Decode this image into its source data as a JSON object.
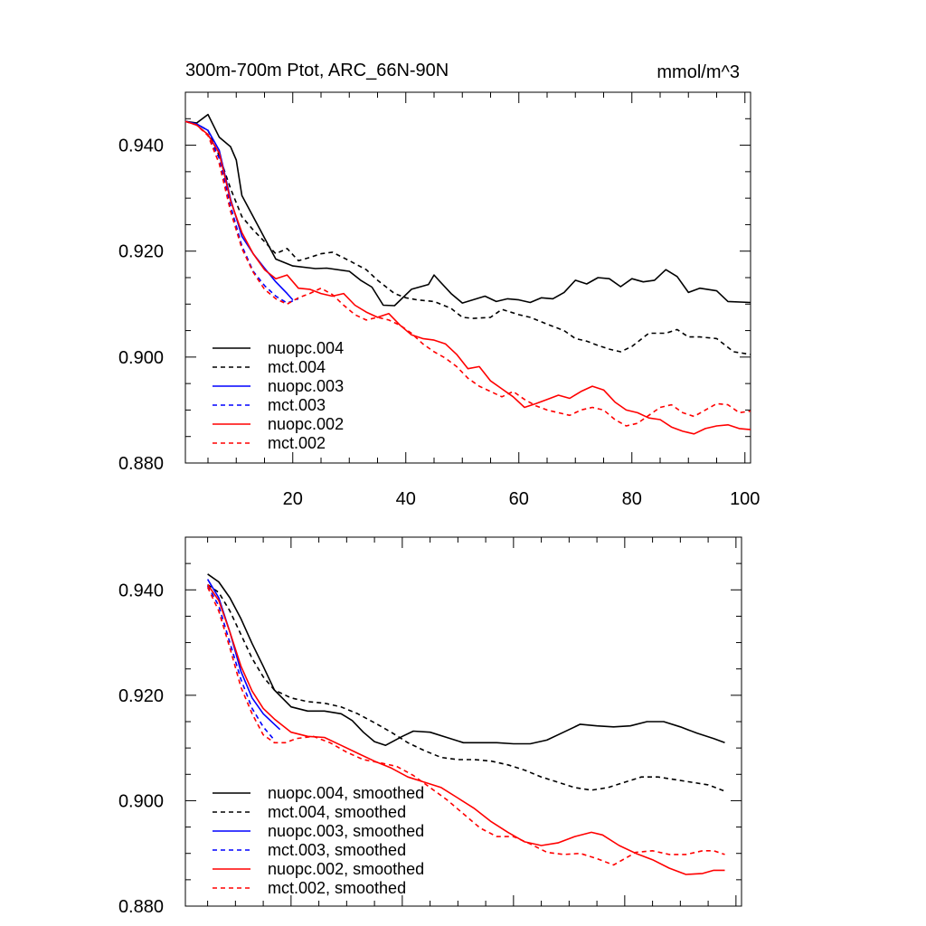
{
  "chart_data": [
    {
      "type": "line",
      "title": "300m-700m Ptot, ARC_66N-90N",
      "units": "mmol/m^3",
      "xlim": [
        1,
        101
      ],
      "ylim": [
        0.88,
        0.95
      ],
      "xticks": [
        20,
        40,
        60,
        80,
        100
      ],
      "xtick_labels": [
        "20",
        "40",
        "60",
        "80",
        "100"
      ],
      "yticks": [
        0.88,
        0.9,
        0.92,
        0.94
      ],
      "ytick_labels": [
        "0.880",
        "0.900",
        "0.920",
        "0.940"
      ],
      "legend_position": "bottom-left",
      "series": [
        {
          "name": "nuopc.004",
          "color": "#000000",
          "dash": "solid",
          "x": [
            1,
            3,
            5,
            7,
            9,
            10,
            11,
            13,
            15,
            17,
            20,
            24,
            26,
            30,
            32,
            34,
            36,
            38,
            41,
            44,
            45,
            46,
            48,
            50,
            54,
            56,
            58,
            60,
            62,
            64,
            66,
            68,
            70,
            72,
            74,
            76,
            78,
            80,
            82,
            84,
            86,
            88,
            90,
            92,
            95,
            97,
            101
          ],
          "y": [
            0.9445,
            0.9442,
            0.9458,
            0.9415,
            0.9397,
            0.9372,
            0.9305,
            0.9265,
            0.9225,
            0.9185,
            0.9172,
            0.9167,
            0.9168,
            0.9162,
            0.9145,
            0.9132,
            0.9098,
            0.9097,
            0.9128,
            0.9137,
            0.9155,
            0.9143,
            0.912,
            0.9102,
            0.9115,
            0.9105,
            0.911,
            0.9108,
            0.9103,
            0.9112,
            0.911,
            0.9122,
            0.9145,
            0.9138,
            0.915,
            0.9148,
            0.9133,
            0.9148,
            0.9142,
            0.9145,
            0.9165,
            0.9152,
            0.9122,
            0.913,
            0.9125,
            0.9105,
            0.9103
          ]
        },
        {
          "name": "mct.004",
          "color": "#000000",
          "dash": "dashed",
          "x": [
            1,
            3,
            5,
            7,
            9,
            11,
            13,
            15,
            17,
            19,
            21,
            23,
            25,
            27,
            30,
            33,
            35,
            38,
            40,
            42,
            45,
            48,
            50,
            52,
            55,
            57,
            60,
            62,
            65,
            68,
            70,
            72,
            74,
            76,
            78,
            80,
            83,
            86,
            88,
            90,
            92,
            95,
            98,
            101
          ],
          "y": [
            0.9445,
            0.944,
            0.9428,
            0.938,
            0.9318,
            0.9265,
            0.924,
            0.9218,
            0.9195,
            0.9205,
            0.9182,
            0.9188,
            0.9195,
            0.9198,
            0.9182,
            0.9165,
            0.9145,
            0.912,
            0.9112,
            0.9108,
            0.9105,
            0.9092,
            0.9075,
            0.9073,
            0.9075,
            0.909,
            0.908,
            0.9075,
            0.9062,
            0.905,
            0.9035,
            0.903,
            0.9022,
            0.9015,
            0.901,
            0.902,
            0.9045,
            0.9045,
            0.9052,
            0.9038,
            0.9038,
            0.9035,
            0.901,
            0.9005
          ]
        },
        {
          "name": "nuopc.003",
          "color": "#0000ff",
          "dash": "solid",
          "x": [
            1,
            3,
            5,
            7,
            9,
            11,
            13,
            15,
            17,
            19,
            20
          ],
          "y": [
            0.9445,
            0.944,
            0.9428,
            0.939,
            0.9298,
            0.9228,
            0.9195,
            0.9168,
            0.9142,
            0.912,
            0.9108
          ]
        },
        {
          "name": "mct.003",
          "color": "#0000ff",
          "dash": "dashed",
          "x": [
            1,
            3,
            5,
            7,
            9,
            11,
            13,
            15,
            17,
            19,
            21
          ],
          "y": [
            0.9445,
            0.9438,
            0.942,
            0.9375,
            0.9285,
            0.921,
            0.9162,
            0.9135,
            0.9115,
            0.9102,
            0.911
          ]
        },
        {
          "name": "nuopc.002",
          "color": "#ff0000",
          "dash": "solid",
          "x": [
            1,
            3,
            5,
            7,
            9,
            11,
            13,
            15,
            17,
            19,
            21,
            23,
            25,
            27,
            29,
            31,
            33,
            35,
            37,
            39,
            41,
            43,
            45,
            47,
            49,
            51,
            53,
            55,
            57,
            59,
            61,
            63,
            65,
            67,
            69,
            71,
            73,
            75,
            77,
            79,
            81,
            83,
            85,
            87,
            89,
            91,
            93,
            95,
            97,
            99,
            101
          ],
          "y": [
            0.9445,
            0.9438,
            0.942,
            0.9385,
            0.9295,
            0.9235,
            0.9195,
            0.9165,
            0.9148,
            0.9155,
            0.913,
            0.9128,
            0.912,
            0.9115,
            0.912,
            0.9098,
            0.9085,
            0.9075,
            0.9082,
            0.906,
            0.9042,
            0.9035,
            0.9032,
            0.9025,
            0.9005,
            0.8978,
            0.8982,
            0.8955,
            0.894,
            0.8925,
            0.8905,
            0.8912,
            0.892,
            0.8928,
            0.8922,
            0.8935,
            0.8945,
            0.8938,
            0.8915,
            0.89,
            0.8895,
            0.8885,
            0.8882,
            0.8868,
            0.886,
            0.8855,
            0.8865,
            0.887,
            0.8872,
            0.8865,
            0.8863
          ]
        },
        {
          "name": "mct.002",
          "color": "#ff0000",
          "dash": "dashed",
          "x": [
            1,
            3,
            5,
            7,
            9,
            11,
            13,
            15,
            17,
            19,
            21,
            23,
            25,
            27,
            29,
            31,
            33,
            35,
            37,
            39,
            41,
            43,
            45,
            47,
            49,
            51,
            53,
            55,
            57,
            59,
            61,
            63,
            65,
            67,
            69,
            71,
            73,
            75,
            77,
            79,
            81,
            83,
            85,
            87,
            89,
            91,
            93,
            95,
            97,
            99,
            101
          ],
          "y": [
            0.9445,
            0.9438,
            0.9418,
            0.9365,
            0.9275,
            0.9205,
            0.916,
            0.9128,
            0.911,
            0.91,
            0.9112,
            0.912,
            0.913,
            0.9118,
            0.9098,
            0.908,
            0.907,
            0.9075,
            0.907,
            0.906,
            0.9045,
            0.9025,
            0.901,
            0.8998,
            0.8982,
            0.896,
            0.8945,
            0.8935,
            0.8925,
            0.8935,
            0.892,
            0.8908,
            0.89,
            0.8895,
            0.889,
            0.89,
            0.8905,
            0.89,
            0.8882,
            0.887,
            0.8875,
            0.889,
            0.8905,
            0.891,
            0.8895,
            0.8888,
            0.89,
            0.8912,
            0.891,
            0.8895,
            0.8898
          ]
        }
      ]
    },
    {
      "type": "line",
      "xlim": [
        1,
        101
      ],
      "ylim": [
        0.88,
        0.95
      ],
      "xticks": [
        20,
        40,
        60,
        80,
        100
      ],
      "yticks": [
        0.88,
        0.9,
        0.92,
        0.94
      ],
      "ytick_labels": [
        "0.880",
        "0.900",
        "0.920",
        "0.940"
      ],
      "legend_position": "bottom-left",
      "series": [
        {
          "name": "nuopc.004, smoothed",
          "color": "#000000",
          "dash": "solid",
          "x": [
            5,
            7,
            9,
            11,
            13,
            15,
            17,
            20,
            23,
            26,
            29,
            31,
            33,
            35,
            37,
            40,
            42,
            45,
            48,
            51,
            54,
            57,
            60,
            63,
            66,
            69,
            72,
            75,
            78,
            81,
            84,
            87,
            90,
            93,
            96,
            98
          ],
          "y": [
            0.943,
            0.9415,
            0.9385,
            0.9345,
            0.9298,
            0.9255,
            0.921,
            0.9178,
            0.917,
            0.917,
            0.9165,
            0.9152,
            0.913,
            0.9112,
            0.9105,
            0.9122,
            0.9132,
            0.913,
            0.912,
            0.911,
            0.911,
            0.911,
            0.9108,
            0.9108,
            0.9115,
            0.913,
            0.9145,
            0.9142,
            0.914,
            0.9142,
            0.915,
            0.915,
            0.914,
            0.9128,
            0.9118,
            0.911
          ]
        },
        {
          "name": "mct.004, smoothed",
          "color": "#000000",
          "dash": "dashed",
          "x": [
            5,
            7,
            9,
            11,
            13,
            15,
            17,
            20,
            23,
            26,
            29,
            32,
            35,
            38,
            41,
            44,
            47,
            50,
            53,
            56,
            59,
            62,
            65,
            68,
            71,
            74,
            77,
            80,
            83,
            86,
            89,
            92,
            95,
            98
          ],
          "y": [
            0.941,
            0.9395,
            0.936,
            0.9315,
            0.927,
            0.9235,
            0.921,
            0.9195,
            0.9188,
            0.9185,
            0.9178,
            0.9165,
            0.9148,
            0.913,
            0.911,
            0.9095,
            0.9082,
            0.9078,
            0.9078,
            0.9075,
            0.9068,
            0.9058,
            0.9045,
            0.9035,
            0.9025,
            0.902,
            0.9025,
            0.9035,
            0.9045,
            0.9045,
            0.904,
            0.9035,
            0.903,
            0.9018
          ]
        },
        {
          "name": "nuopc.003, smoothed",
          "color": "#0000ff",
          "dash": "solid",
          "x": [
            5,
            7,
            9,
            11,
            13,
            15,
            17,
            18
          ],
          "y": [
            0.942,
            0.9385,
            0.932,
            0.9245,
            0.9195,
            0.9165,
            0.9145,
            0.9135
          ]
        },
        {
          "name": "mct.003, smoothed",
          "color": "#0000ff",
          "dash": "dashed",
          "x": [
            5,
            7,
            9,
            11,
            13,
            15,
            17
          ],
          "y": [
            0.9408,
            0.937,
            0.93,
            0.923,
            0.9175,
            0.914,
            0.9115
          ]
        },
        {
          "name": "nuopc.002, smoothed",
          "color": "#ff0000",
          "dash": "solid",
          "x": [
            5,
            7,
            9,
            11,
            13,
            15,
            17,
            20,
            23,
            26,
            29,
            32,
            35,
            38,
            41,
            44,
            47,
            50,
            53,
            56,
            59,
            62,
            65,
            68,
            71,
            74,
            76,
            79,
            82,
            85,
            88,
            91,
            94,
            96,
            98
          ],
          "y": [
            0.941,
            0.938,
            0.932,
            0.9255,
            0.9208,
            0.9175,
            0.9155,
            0.913,
            0.9122,
            0.912,
            0.9105,
            0.909,
            0.9075,
            0.9062,
            0.9045,
            0.9035,
            0.9025,
            0.9005,
            0.8985,
            0.896,
            0.894,
            0.8922,
            0.8915,
            0.892,
            0.8932,
            0.894,
            0.8935,
            0.8915,
            0.89,
            0.8888,
            0.8872,
            0.886,
            0.8862,
            0.8868,
            0.8868
          ]
        },
        {
          "name": "mct.002, smoothed",
          "color": "#ff0000",
          "dash": "dashed",
          "x": [
            5,
            7,
            9,
            11,
            13,
            15,
            17,
            19,
            21,
            24,
            27,
            30,
            33,
            36,
            39,
            42,
            45,
            48,
            51,
            54,
            57,
            60,
            63,
            66,
            69,
            72,
            75,
            78,
            80,
            82,
            85,
            88,
            91,
            94,
            96,
            98
          ],
          "y": [
            0.9405,
            0.936,
            0.929,
            0.9215,
            0.9165,
            0.9125,
            0.911,
            0.911,
            0.9118,
            0.9122,
            0.911,
            0.9092,
            0.9078,
            0.9072,
            0.9065,
            0.9048,
            0.9025,
            0.9002,
            0.8975,
            0.8948,
            0.8932,
            0.8932,
            0.8918,
            0.8902,
            0.8898,
            0.89,
            0.889,
            0.8878,
            0.889,
            0.8902,
            0.8905,
            0.8898,
            0.8898,
            0.8905,
            0.8905,
            0.8898
          ]
        }
      ]
    }
  ]
}
